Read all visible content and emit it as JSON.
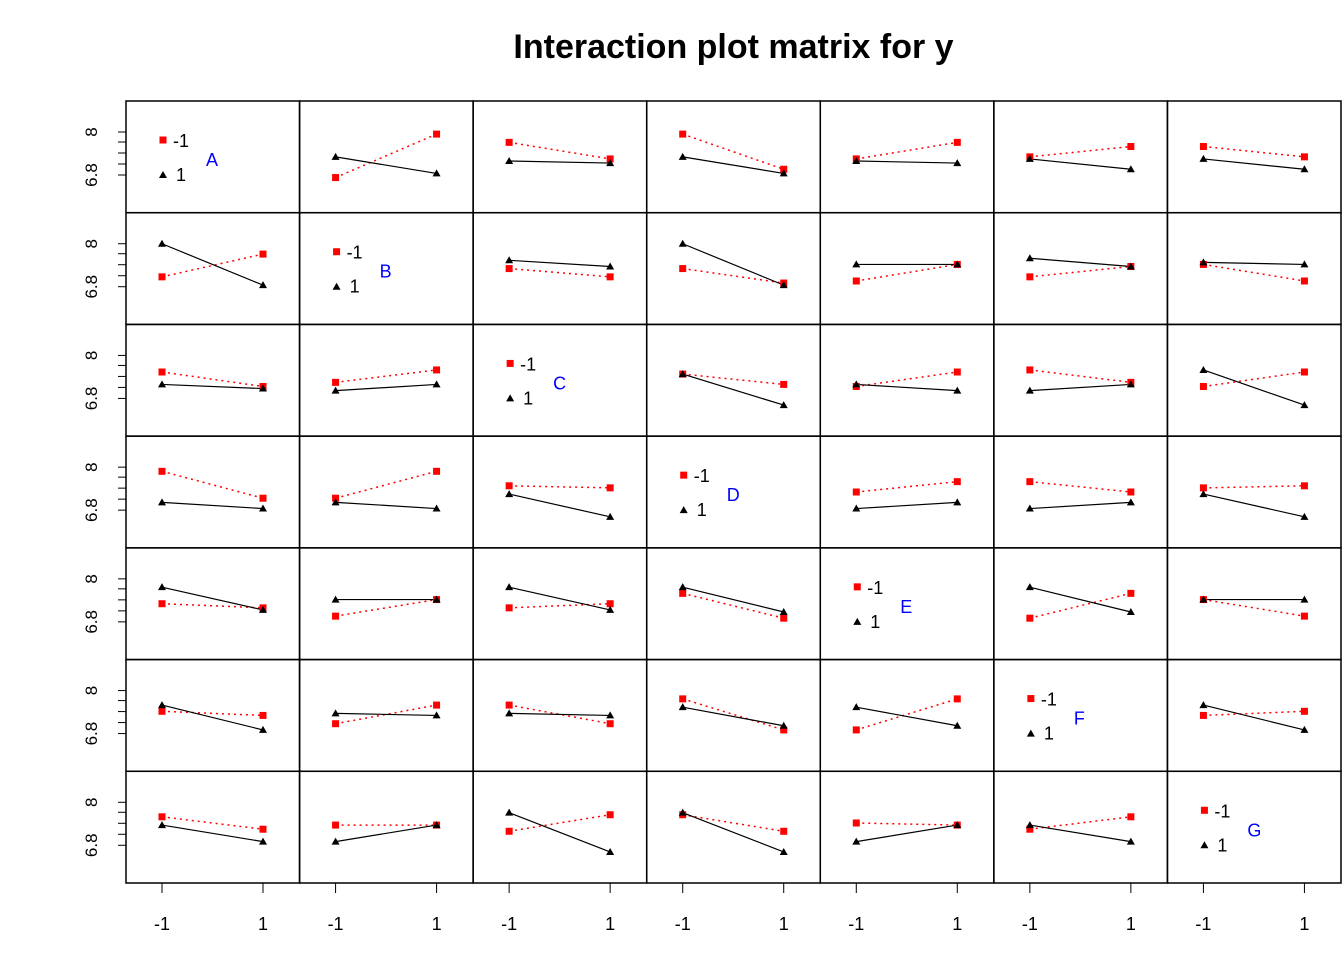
{
  "colors": {
    "level_minus": "#ff0000",
    "level_plus": "#000000",
    "factor_label": "#0000ff"
  },
  "chart_data": {
    "type": "line",
    "title": "Interaction plot matrix for y",
    "factors": [
      "A",
      "B",
      "C",
      "D",
      "E",
      "F",
      "G"
    ],
    "levels": [
      "-1",
      "1"
    ],
    "x_ticks": [
      "-1",
      "1"
    ],
    "y_tick_labels": [
      "6.8",
      "8"
    ],
    "legend": [
      {
        "label": "-1",
        "color": "#ff0000",
        "marker": "square",
        "line": "dotted"
      },
      {
        "label": "1",
        "color": "#000000",
        "marker": "triangle",
        "line": "solid"
      }
    ],
    "ylim": [
      6.25,
      8.95
    ],
    "cells": [
      [
        null,
        {
          "minus": [
            7.1,
            8.15
          ],
          "plus": [
            7.6,
            7.2
          ]
        },
        {
          "minus": [
            7.95,
            7.55
          ],
          "plus": [
            7.5,
            7.45
          ]
        },
        {
          "minus": [
            8.15,
            7.3
          ],
          "plus": [
            7.6,
            7.2
          ]
        },
        {
          "minus": [
            7.55,
            7.95
          ],
          "plus": [
            7.5,
            7.45
          ]
        },
        {
          "minus": [
            7.6,
            7.85
          ],
          "plus": [
            7.55,
            7.3
          ]
        },
        {
          "minus": [
            7.85,
            7.6
          ],
          "plus": [
            7.55,
            7.3
          ]
        }
      ],
      [
        {
          "minus": [
            7.4,
            7.95
          ],
          "plus": [
            8.2,
            7.2
          ]
        },
        null,
        {
          "minus": [
            7.6,
            7.4
          ],
          "plus": [
            7.8,
            7.65
          ]
        },
        {
          "minus": [
            7.6,
            7.25
          ],
          "plus": [
            8.2,
            7.2
          ]
        },
        {
          "minus": [
            7.3,
            7.7
          ],
          "plus": [
            7.7,
            7.7
          ]
        },
        {
          "minus": [
            7.4,
            7.65
          ],
          "plus": [
            7.85,
            7.65
          ]
        },
        {
          "minus": [
            7.7,
            7.3
          ],
          "plus": [
            7.75,
            7.7
          ]
        }
      ],
      [
        {
          "minus": [
            7.8,
            7.45
          ],
          "plus": [
            7.5,
            7.4
          ]
        },
        {
          "minus": [
            7.55,
            7.85
          ],
          "plus": [
            7.35,
            7.5
          ]
        },
        null,
        {
          "minus": [
            7.75,
            7.5
          ],
          "plus": [
            7.75,
            7.0
          ]
        },
        {
          "minus": [
            7.45,
            7.8
          ],
          "plus": [
            7.5,
            7.35
          ]
        },
        {
          "minus": [
            7.85,
            7.55
          ],
          "plus": [
            7.35,
            7.5
          ]
        },
        {
          "minus": [
            7.45,
            7.8
          ],
          "plus": [
            7.85,
            7.0
          ]
        }
      ],
      [
        {
          "minus": [
            8.1,
            7.45
          ],
          "plus": [
            7.35,
            7.2
          ]
        },
        {
          "minus": [
            7.45,
            8.1
          ],
          "plus": [
            7.35,
            7.2
          ]
        },
        {
          "minus": [
            7.75,
            7.7
          ],
          "plus": [
            7.55,
            7.0
          ]
        },
        null,
        {
          "minus": [
            7.6,
            7.85
          ],
          "plus": [
            7.2,
            7.35
          ]
        },
        {
          "minus": [
            7.85,
            7.6
          ],
          "plus": [
            7.2,
            7.35
          ]
        },
        {
          "minus": [
            7.7,
            7.75
          ],
          "plus": [
            7.55,
            7.0
          ]
        }
      ],
      [
        {
          "minus": [
            7.6,
            7.5
          ],
          "plus": [
            8.0,
            7.45
          ]
        },
        {
          "minus": [
            7.3,
            7.7
          ],
          "plus": [
            7.7,
            7.7
          ]
        },
        {
          "minus": [
            7.5,
            7.6
          ],
          "plus": [
            8.0,
            7.45
          ]
        },
        {
          "minus": [
            7.85,
            7.25
          ],
          "plus": [
            8.0,
            7.4
          ]
        },
        null,
        {
          "minus": [
            7.25,
            7.85
          ],
          "plus": [
            8.0,
            7.4
          ]
        },
        {
          "minus": [
            7.7,
            7.3
          ],
          "plus": [
            7.7,
            7.7
          ]
        }
      ],
      [
        {
          "minus": [
            7.7,
            7.6
          ],
          "plus": [
            7.85,
            7.25
          ]
        },
        {
          "minus": [
            7.4,
            7.85
          ],
          "plus": [
            7.65,
            7.6
          ]
        },
        {
          "minus": [
            7.85,
            7.4
          ],
          "plus": [
            7.65,
            7.6
          ]
        },
        {
          "minus": [
            8.0,
            7.25
          ],
          "plus": [
            7.8,
            7.35
          ]
        },
        {
          "minus": [
            7.25,
            8.0
          ],
          "plus": [
            7.8,
            7.35
          ]
        },
        null,
        {
          "minus": [
            7.6,
            7.7
          ],
          "plus": [
            7.85,
            7.25
          ]
        }
      ],
      [
        {
          "minus": [
            7.85,
            7.55
          ],
          "plus": [
            7.65,
            7.25
          ]
        },
        {
          "minus": [
            7.65,
            7.65
          ],
          "plus": [
            7.25,
            7.65
          ]
        },
        {
          "minus": [
            7.5,
            7.9
          ],
          "plus": [
            7.95,
            7.0
          ]
        },
        {
          "minus": [
            7.9,
            7.5
          ],
          "plus": [
            7.95,
            7.0
          ]
        },
        {
          "minus": [
            7.7,
            7.65
          ],
          "plus": [
            7.25,
            7.65
          ]
        },
        {
          "minus": [
            7.55,
            7.85
          ],
          "plus": [
            7.65,
            7.25
          ]
        },
        null
      ]
    ]
  }
}
